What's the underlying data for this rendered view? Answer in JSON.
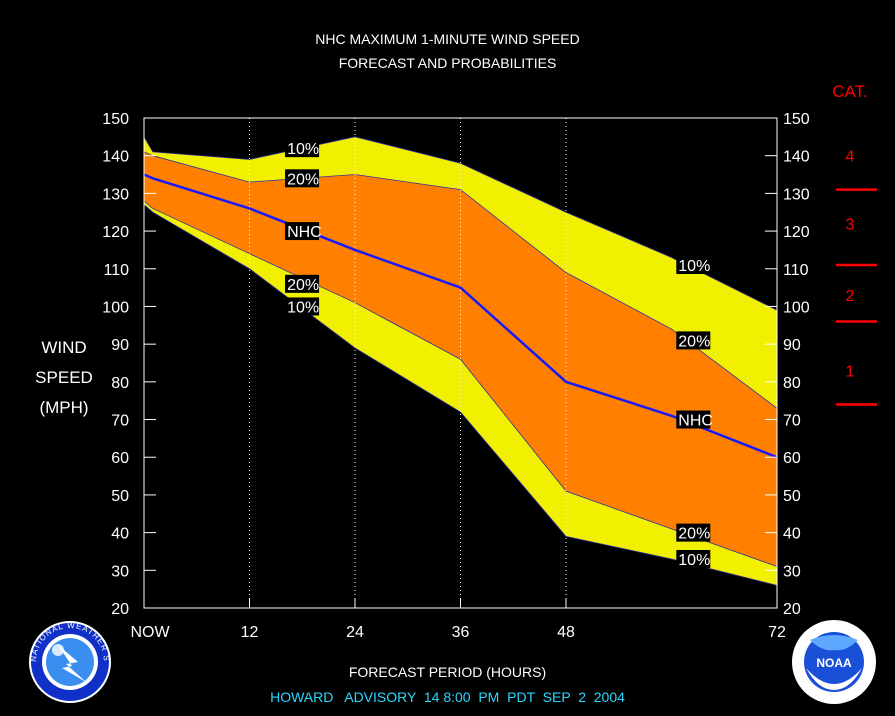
{
  "chart_data": {
    "type": "area",
    "title": "NHC MAXIMUM 1-MINUTE WIND SPEED",
    "subtitle": "FORECAST AND PROBABILITIES",
    "xlabel": "FORECAST PERIOD (HOURS)",
    "ylabel": [
      "WIND",
      "SPEED",
      "(MPH)"
    ],
    "x_ticks": [
      {
        "x": 0,
        "label": "NOW"
      },
      {
        "x": 12,
        "label": "12"
      },
      {
        "x": 24,
        "label": "24"
      },
      {
        "x": 36,
        "label": "36"
      },
      {
        "x": 48,
        "label": "48"
      },
      {
        "x": 72,
        "label": "72"
      }
    ],
    "xlim": [
      0,
      72
    ],
    "ylim": [
      20,
      150
    ],
    "y_ticks": [
      20,
      30,
      40,
      50,
      60,
      70,
      80,
      90,
      100,
      110,
      120,
      130,
      140,
      150
    ],
    "x": [
      0,
      1,
      12,
      24,
      36,
      48,
      60,
      72
    ],
    "series": [
      {
        "name": "10%",
        "role": "upper",
        "values": [
          145,
          141,
          139,
          145,
          138,
          125,
          113,
          99
        ]
      },
      {
        "name": "20%",
        "role": "upper",
        "values": [
          141,
          140,
          133,
          135,
          131,
          109,
          94,
          73
        ]
      },
      {
        "name": "NHC",
        "role": "forecast",
        "values": [
          135,
          134,
          126,
          115,
          105,
          80,
          71,
          60
        ]
      },
      {
        "name": "20%",
        "role": "lower",
        "values": [
          128,
          126,
          114,
          101,
          86,
          51,
          41,
          31
        ]
      },
      {
        "name": "10%",
        "role": "lower",
        "values": [
          127,
          125,
          110,
          89,
          72,
          39,
          33,
          26
        ]
      }
    ],
    "inline_labels": [
      {
        "text": "10%",
        "x": 16.5,
        "y": 142
      },
      {
        "text": "20%",
        "x": 16.5,
        "y": 134
      },
      {
        "text": "NHC",
        "x": 16.5,
        "y": 120
      },
      {
        "text": "20%",
        "x": 16.5,
        "y": 106
      },
      {
        "text": "10%",
        "x": 16.5,
        "y": 100
      },
      {
        "text": "10%",
        "x": 61,
        "y": 111
      },
      {
        "text": "20%",
        "x": 61,
        "y": 91
      },
      {
        "text": "NHC",
        "x": 61,
        "y": 70
      },
      {
        "text": "20%",
        "x": 61,
        "y": 40
      },
      {
        "text": "10%",
        "x": 61,
        "y": 33
      }
    ],
    "categories": {
      "title": "CAT.",
      "labels": [
        {
          "text": "4",
          "y": 140
        },
        {
          "text": "3",
          "y": 122
        },
        {
          "text": "2",
          "y": 103
        },
        {
          "text": "1",
          "y": 83
        }
      ],
      "boundaries": [
        131,
        111,
        96,
        74
      ]
    },
    "footer": "HOWARD   ADVISORY  14 8:00  PM  PDT  SEP  2  2004",
    "colors": {
      "background": "#000000",
      "outer_band": "#f0f000",
      "inner_band": "#ff8000",
      "forecast_line": "#1818ff",
      "category": "#ff0000",
      "footer": "#28d8ff",
      "text": "#ffffff"
    },
    "logos": {
      "left": "NATIONAL WEATHER SERVICE",
      "right": "NOAA"
    }
  }
}
